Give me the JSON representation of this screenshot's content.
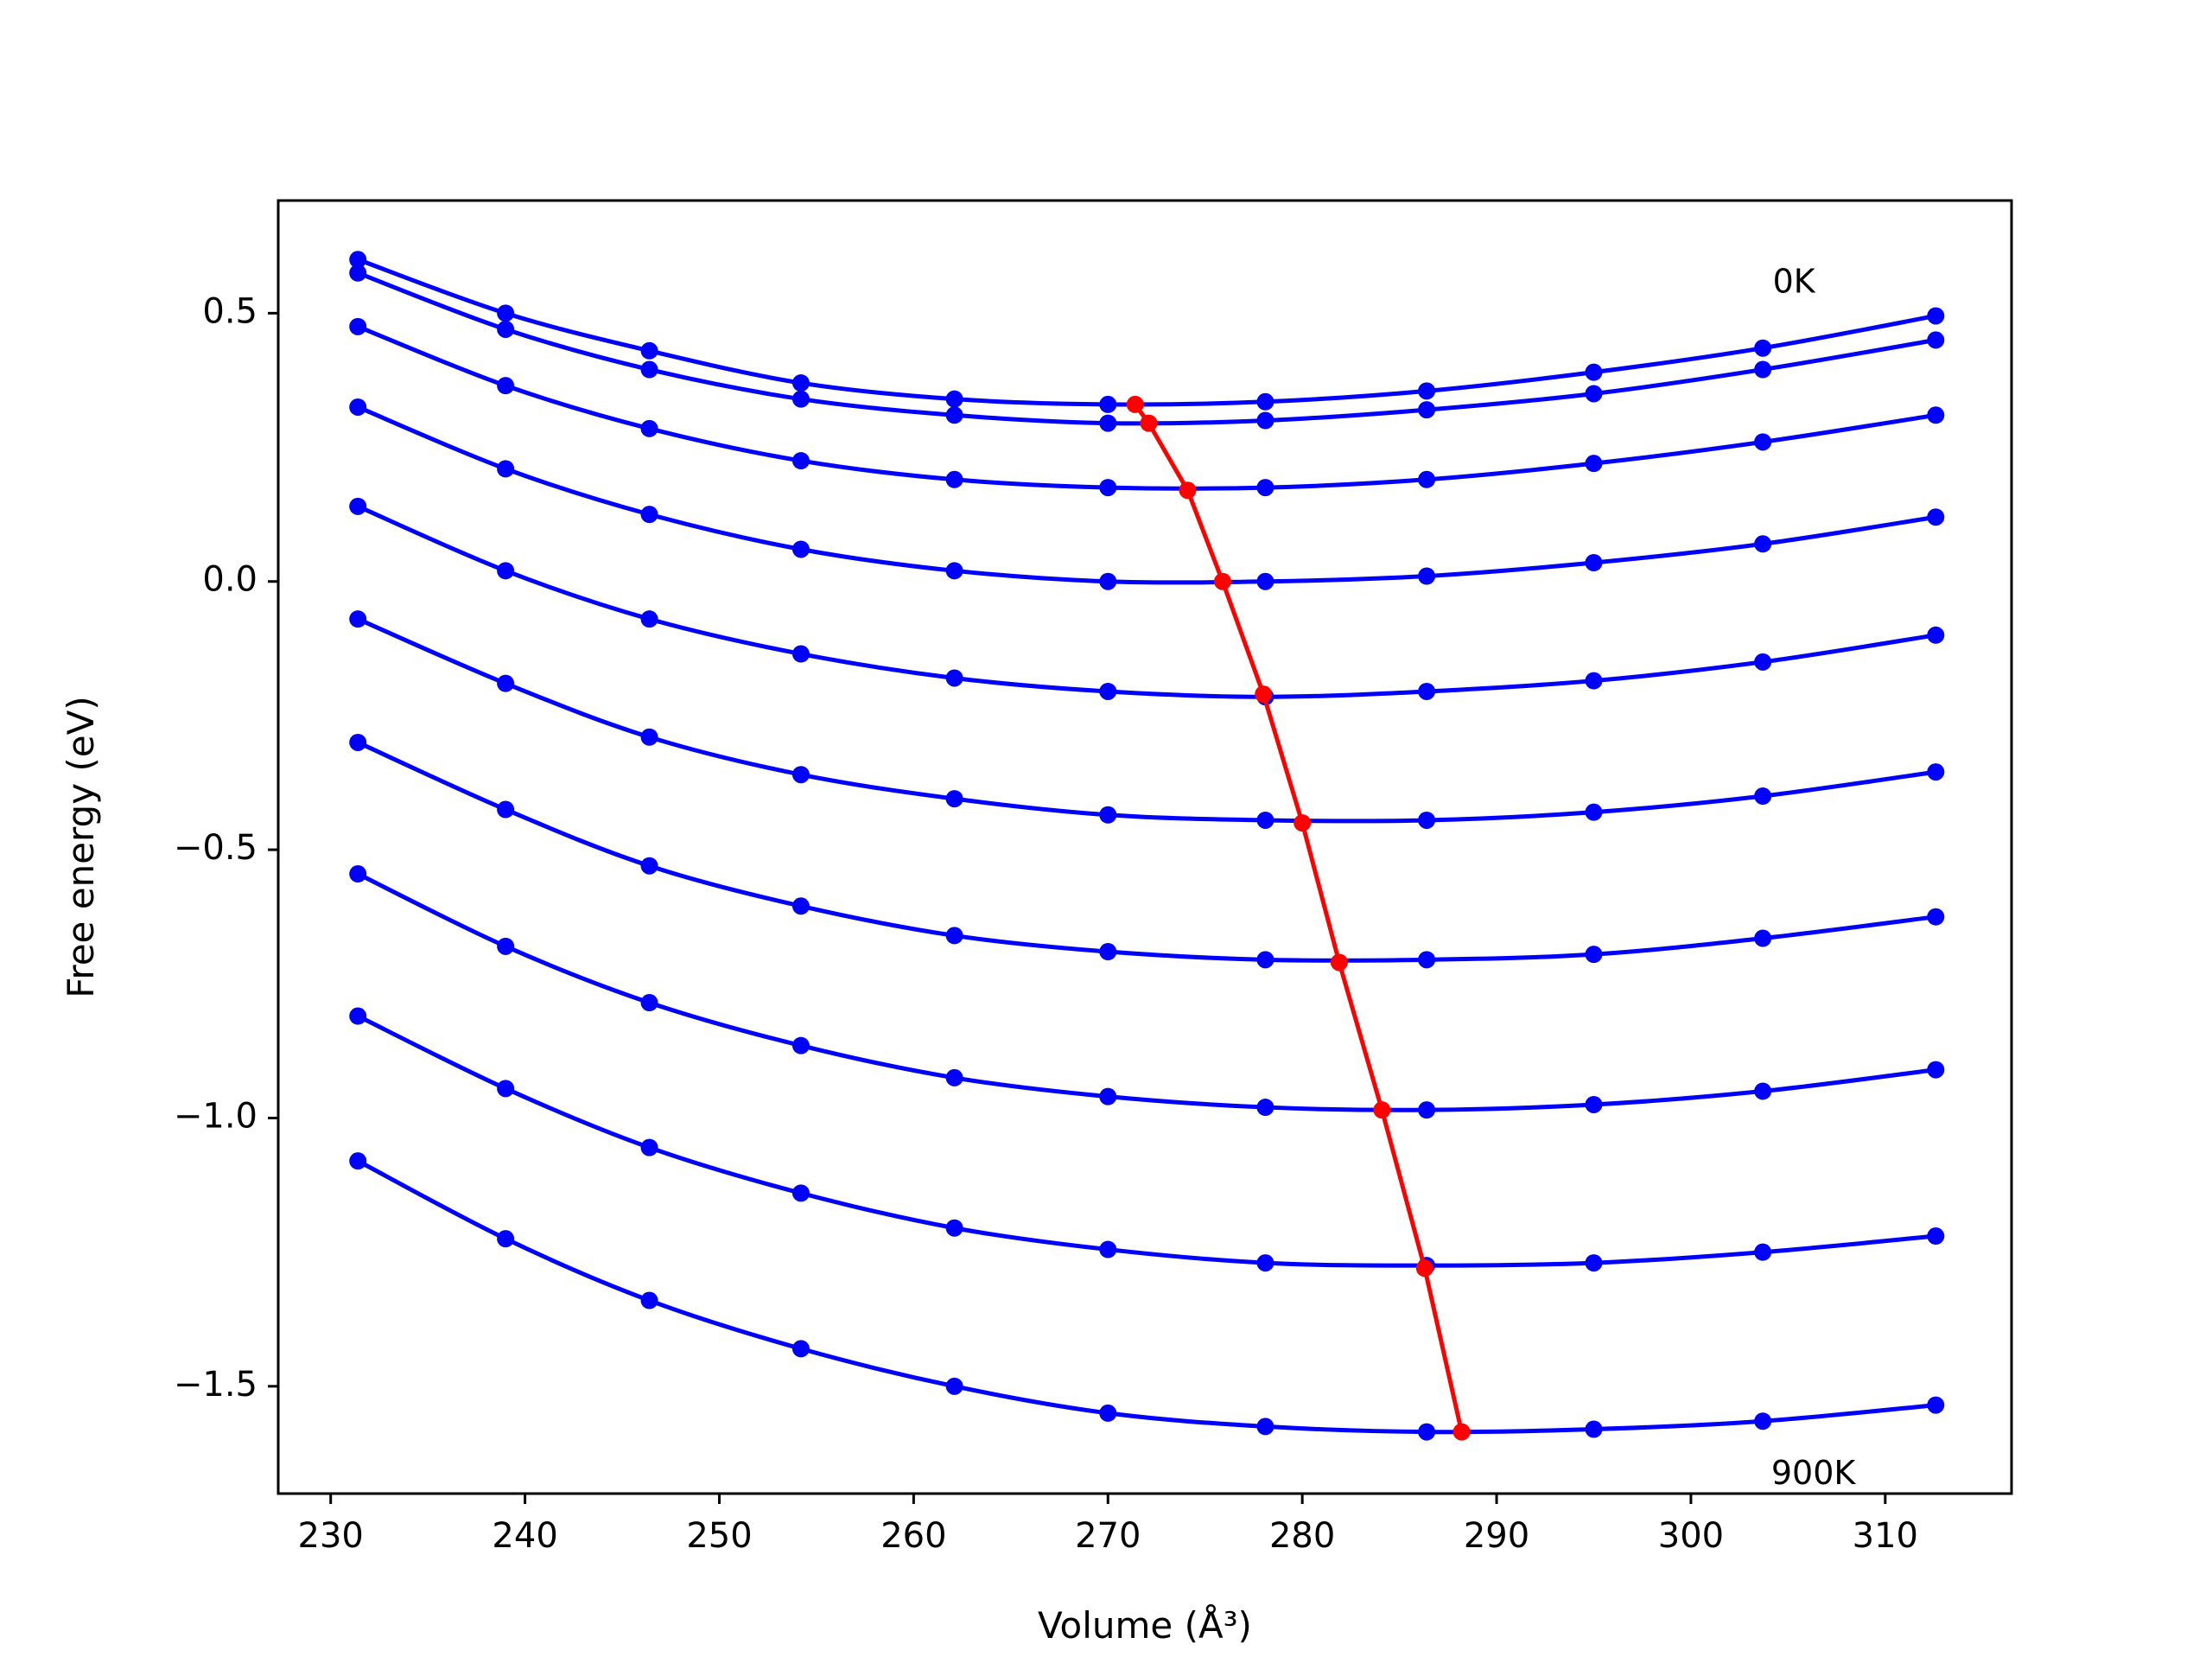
{
  "chart_data": {
    "type": "line",
    "xlabel": "Volume (Å³)",
    "ylabel": "Free energy (eV)",
    "xlim": [
      227.3,
      316.5
    ],
    "ylim": [
      -1.7,
      0.71
    ],
    "xticks": [
      230,
      240,
      250,
      260,
      270,
      280,
      290,
      300,
      310
    ],
    "xtick_labels": [
      "230",
      "240",
      "250",
      "260",
      "270",
      "280",
      "290",
      "300",
      "310"
    ],
    "yticks": [
      0.5,
      0.0,
      -0.5,
      -1.0,
      -1.5
    ],
    "ytick_labels": [
      "0.5",
      "0.0",
      "−0.5",
      "−1.0",
      "−1.5"
    ],
    "grid": false,
    "legend": "none",
    "colors": {
      "isotherms": "#0000ff",
      "minimum_line": "#ff0000",
      "axes": "#000000"
    },
    "annotations": [
      {
        "text": "0K",
        "x": 305.3,
        "y": 0.555
      },
      {
        "text": "900K",
        "x": 306.3,
        "y": -1.665
      }
    ],
    "x": [
      231.4,
      239.0,
      246.4,
      254.2,
      262.1,
      270.0,
      278.1,
      286.4,
      295.0,
      303.7,
      312.6
    ],
    "series": [
      {
        "values": [
          0.6,
          0.5,
          0.43,
          0.37,
          0.34,
          0.33,
          0.335,
          0.355,
          0.39,
          0.435,
          0.495
        ]
      },
      {
        "values": [
          0.575,
          0.47,
          0.395,
          0.34,
          0.31,
          0.295,
          0.3,
          0.32,
          0.35,
          0.395,
          0.45
        ]
      },
      {
        "values": [
          0.475,
          0.365,
          0.285,
          0.225,
          0.19,
          0.175,
          0.175,
          0.19,
          0.22,
          0.26,
          0.31
        ]
      },
      {
        "values": [
          0.325,
          0.21,
          0.125,
          0.06,
          0.02,
          0.0,
          0.0,
          0.01,
          0.035,
          0.07,
          0.12
        ]
      },
      {
        "values": [
          0.14,
          0.02,
          -0.07,
          -0.135,
          -0.18,
          -0.205,
          -0.215,
          -0.205,
          -0.185,
          -0.15,
          -0.1
        ]
      },
      {
        "values": [
          -0.07,
          -0.19,
          -0.29,
          -0.36,
          -0.405,
          -0.435,
          -0.445,
          -0.445,
          -0.43,
          -0.4,
          -0.355
        ]
      },
      {
        "values": [
          -0.3,
          -0.425,
          -0.53,
          -0.605,
          -0.66,
          -0.69,
          -0.705,
          -0.705,
          -0.695,
          -0.665,
          -0.625
        ]
      },
      {
        "values": [
          -0.545,
          -0.68,
          -0.785,
          -0.865,
          -0.925,
          -0.96,
          -0.98,
          -0.985,
          -0.975,
          -0.95,
          -0.91
        ]
      },
      {
        "values": [
          -0.81,
          -0.945,
          -1.055,
          -1.14,
          -1.205,
          -1.245,
          -1.27,
          -1.275,
          -1.27,
          -1.25,
          -1.22
        ]
      },
      {
        "values": [
          -1.08,
          -1.225,
          -1.34,
          -1.43,
          -1.5,
          -1.55,
          -1.575,
          -1.585,
          -1.58,
          -1.565,
          -1.535
        ]
      }
    ],
    "minima": {
      "x": [
        271.4,
        272.1,
        274.1,
        275.9,
        278.0,
        280.0,
        281.9,
        284.1,
        286.3,
        288.2
      ],
      "y": [
        0.33,
        0.295,
        0.17,
        0.0,
        -0.21,
        -0.45,
        -0.71,
        -0.985,
        -1.28,
        -1.585
      ]
    }
  }
}
